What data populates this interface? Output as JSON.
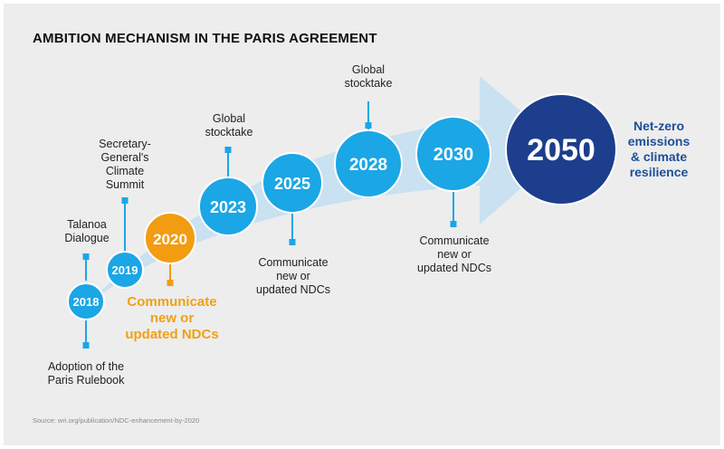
{
  "title": "AMBITION MECHANISM IN THE PARIS AGREEMENT",
  "source": "Source: wri.org/publication/NDC-enhancement-by-2020",
  "colors": {
    "light_blue": "#1ba6e6",
    "orange": "#f29c12",
    "dark_blue": "#1c3e8c",
    "arrow": "#c9e1f1",
    "label_blue": "#1c4f98"
  },
  "milestones": [
    {
      "year": "2018",
      "label": "Adoption of the\nParis Rulebook"
    },
    {
      "year": "2019",
      "label": "Talanoa\nDialogue"
    },
    {
      "year": "2020",
      "label": "Communicate\nnew or\nupdated NDCs"
    },
    {
      "year": "2023",
      "label": "Global\nstocktake"
    },
    {
      "year": "2025",
      "label": "Communicate\nnew or\nupdated NDCs"
    },
    {
      "year": "2028",
      "label": "Global\nstocktake"
    },
    {
      "year": "2030",
      "label": "Communicate\nnew or\nupdated NDCs"
    },
    {
      "year": "2050",
      "label": "Net-zero\nemissions\n& climate\nresilience"
    }
  ],
  "extra_labels": {
    "summit": "Secretary-\nGeneral's\nClimate\nSummit"
  }
}
